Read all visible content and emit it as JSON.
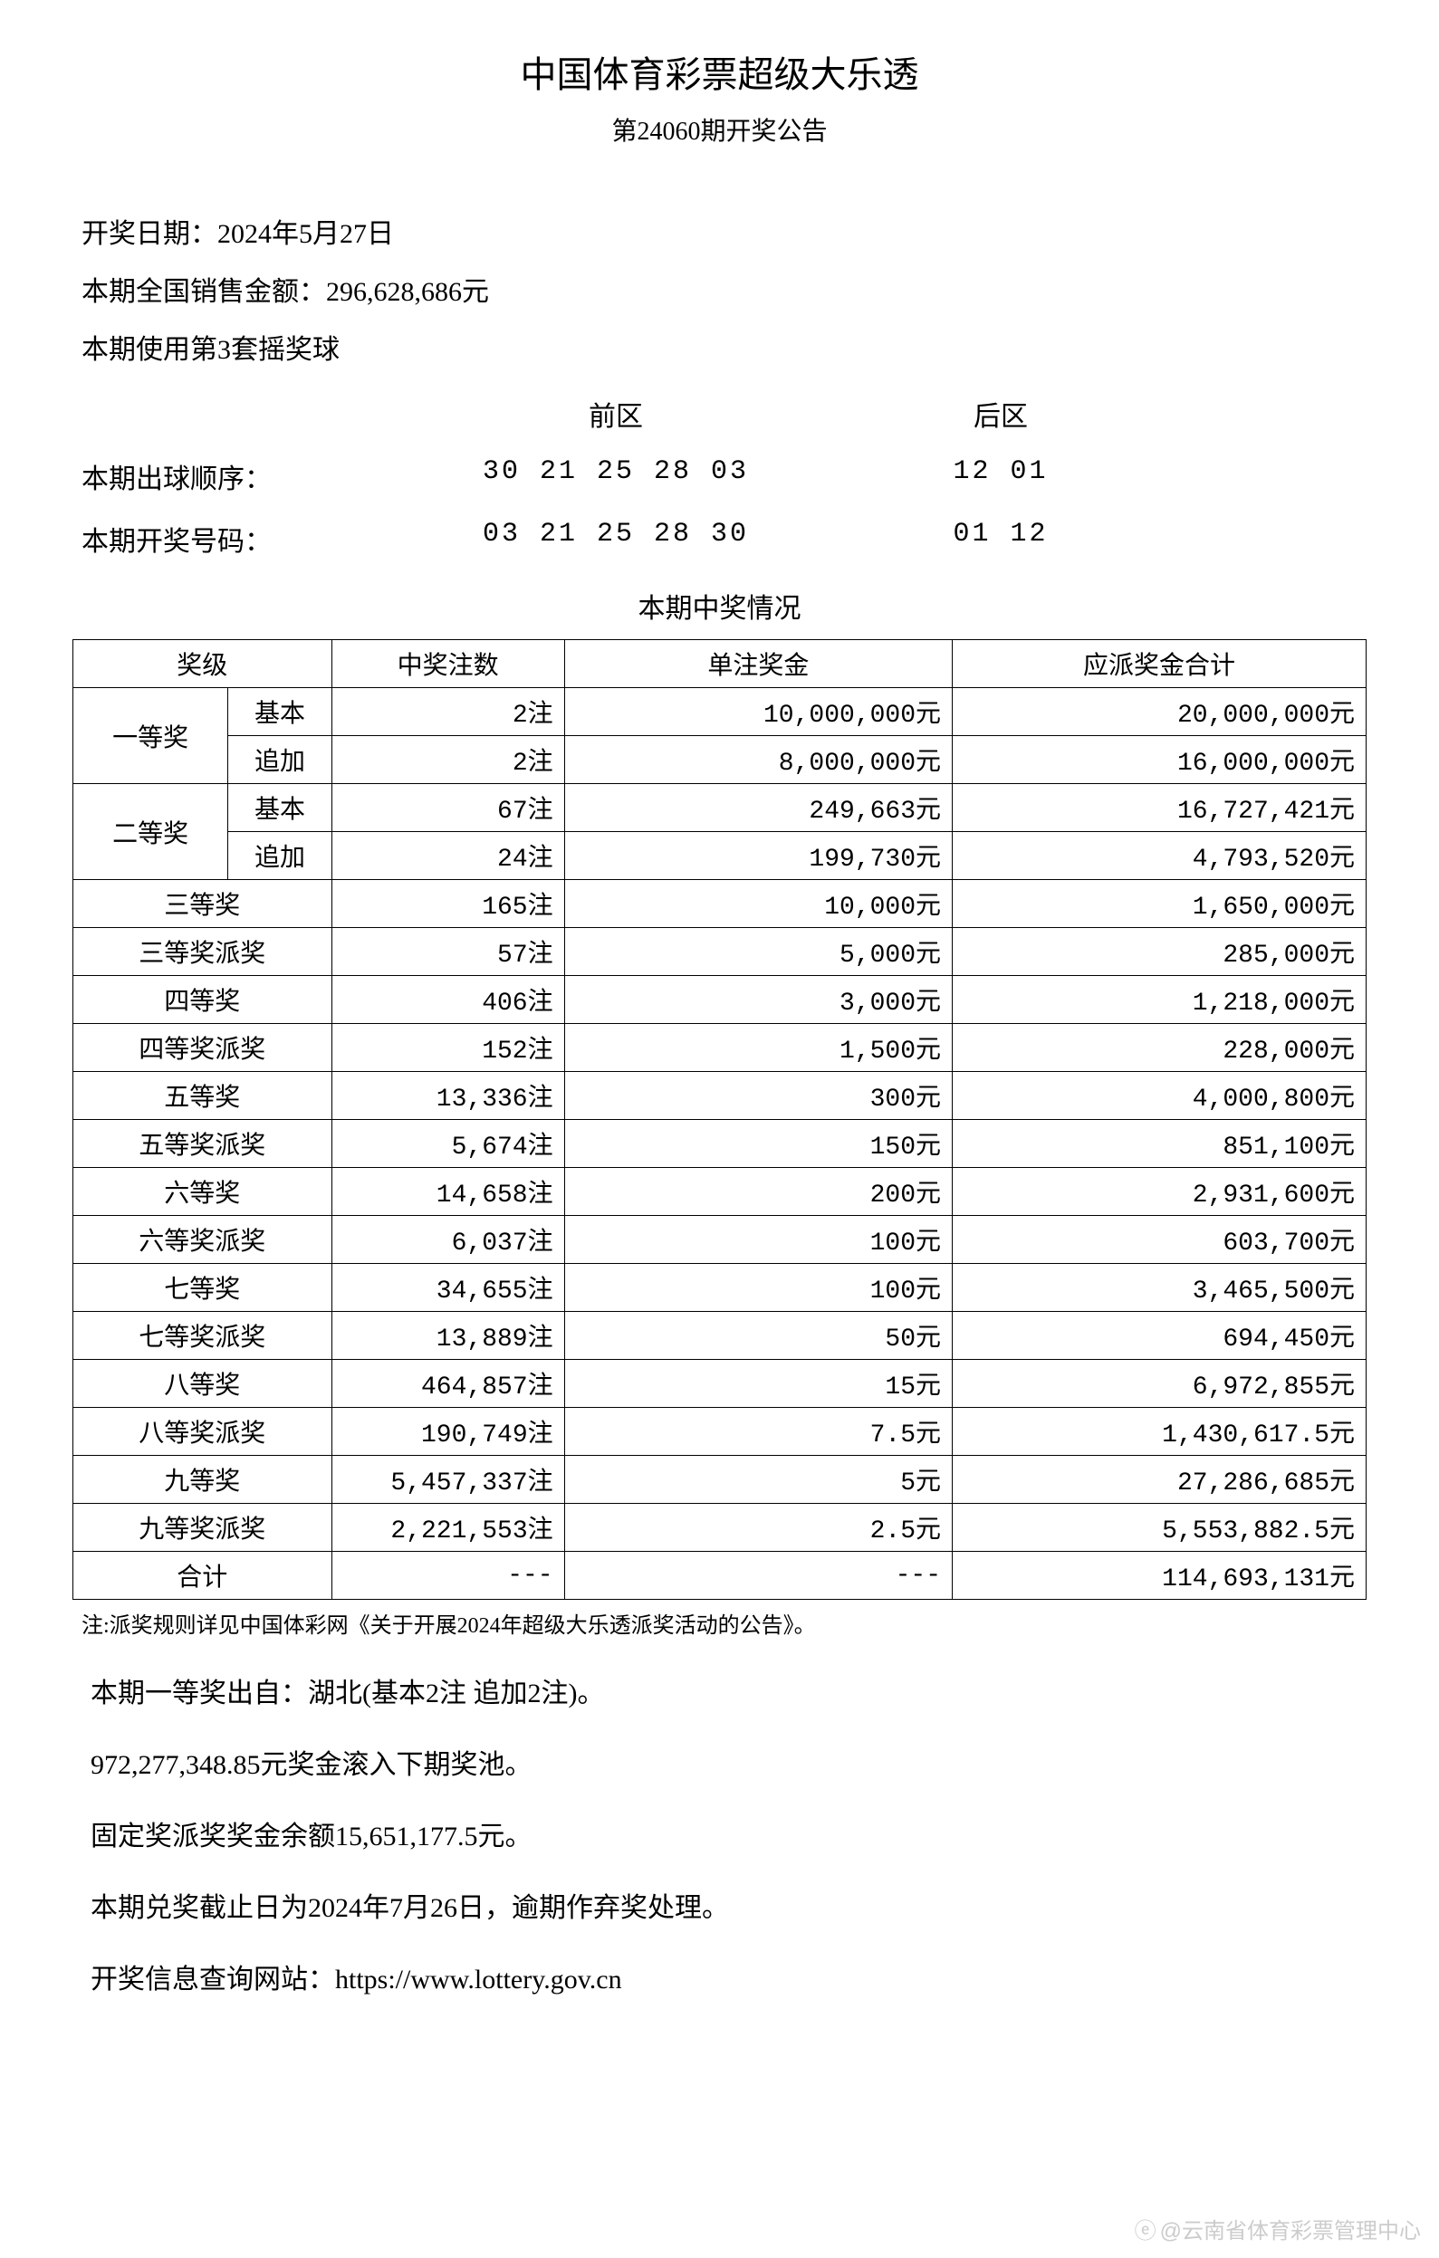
{
  "header": {
    "title": "中国体育彩票超级大乐透",
    "subtitle": "第24060期开奖公告"
  },
  "info": {
    "draw_date": "开奖日期：2024年5月27日",
    "sales_amount": "本期全国销售金额：296,628,686元",
    "ball_set": "本期使用第3套摇奖球"
  },
  "numbers": {
    "front_label": "前区",
    "back_label": "后区",
    "draw_order_label": "本期出球顺序：",
    "draw_order_front": "30 21 25 28 03",
    "draw_order_back": "12 01",
    "winning_label": "本期开奖号码：",
    "winning_front": "03 21 25 28 30",
    "winning_back": "01 12"
  },
  "prize_section_title": "本期中奖情况",
  "table": {
    "headers": {
      "tier": "奖级",
      "winners": "中奖注数",
      "prize": "单注奖金",
      "total": "应派奖金合计"
    },
    "grouped_rows": [
      {
        "tier": "一等奖",
        "subs": [
          {
            "subtier": "基本",
            "winners": "2注",
            "prize": "10,000,000元",
            "total": "20,000,000元"
          },
          {
            "subtier": "追加",
            "winners": "2注",
            "prize": "8,000,000元",
            "total": "16,000,000元"
          }
        ]
      },
      {
        "tier": "二等奖",
        "subs": [
          {
            "subtier": "基本",
            "winners": "67注",
            "prize": "249,663元",
            "total": "16,727,421元"
          },
          {
            "subtier": "追加",
            "winners": "24注",
            "prize": "199,730元",
            "total": "4,793,520元"
          }
        ]
      }
    ],
    "simple_rows": [
      {
        "tier": "三等奖",
        "winners": "165注",
        "prize": "10,000元",
        "total": "1,650,000元"
      },
      {
        "tier": "三等奖派奖",
        "winners": "57注",
        "prize": "5,000元",
        "total": "285,000元"
      },
      {
        "tier": "四等奖",
        "winners": "406注",
        "prize": "3,000元",
        "total": "1,218,000元"
      },
      {
        "tier": "四等奖派奖",
        "winners": "152注",
        "prize": "1,500元",
        "total": "228,000元"
      },
      {
        "tier": "五等奖",
        "winners": "13,336注",
        "prize": "300元",
        "total": "4,000,800元"
      },
      {
        "tier": "五等奖派奖",
        "winners": "5,674注",
        "prize": "150元",
        "total": "851,100元"
      },
      {
        "tier": "六等奖",
        "winners": "14,658注",
        "prize": "200元",
        "total": "2,931,600元"
      },
      {
        "tier": "六等奖派奖",
        "winners": "6,037注",
        "prize": "100元",
        "total": "603,700元"
      },
      {
        "tier": "七等奖",
        "winners": "34,655注",
        "prize": "100元",
        "total": "3,465,500元"
      },
      {
        "tier": "七等奖派奖",
        "winners": "13,889注",
        "prize": "50元",
        "total": "694,450元"
      },
      {
        "tier": "八等奖",
        "winners": "464,857注",
        "prize": "15元",
        "total": "6,972,855元"
      },
      {
        "tier": "八等奖派奖",
        "winners": "190,749注",
        "prize": "7.5元",
        "total": "1,430,617.5元"
      },
      {
        "tier": "九等奖",
        "winners": "5,457,337注",
        "prize": "5元",
        "total": "27,286,685元"
      },
      {
        "tier": "九等奖派奖",
        "winners": "2,221,553注",
        "prize": "2.5元",
        "total": "5,553,882.5元"
      }
    ],
    "total_row": {
      "tier": "合计",
      "winners": "---",
      "prize": "---",
      "total": "114,693,131元"
    }
  },
  "note": "注:派奖规则详见中国体彩网《关于开展2024年超级大乐透派奖活动的公告》。",
  "footer": {
    "line1": "本期一等奖出自：湖北(基本2注 追加2注)。",
    "line2": "972,277,348.85元奖金滚入下期奖池。",
    "line3": "固定奖派奖奖金余额15,651,177.5元。",
    "line4": "本期兑奖截止日为2024年7月26日，逾期作弃奖处理。",
    "line5": "开奖信息查询网站：https://www.lottery.gov.cn"
  },
  "watermark": "@云南省体育彩票管理中心",
  "styling": {
    "font_family": "SimSun",
    "background_color": "#ffffff",
    "text_color": "#000000",
    "border_color": "#000000",
    "watermark_color": "#cccccc",
    "title_fontsize": 40,
    "subtitle_fontsize": 28,
    "body_fontsize": 30,
    "table_fontsize": 28,
    "note_fontsize": 24,
    "col_widths": {
      "tier": "14%",
      "subtier": "8%",
      "winners": "18%",
      "prize": "30%",
      "total": "30%"
    }
  }
}
